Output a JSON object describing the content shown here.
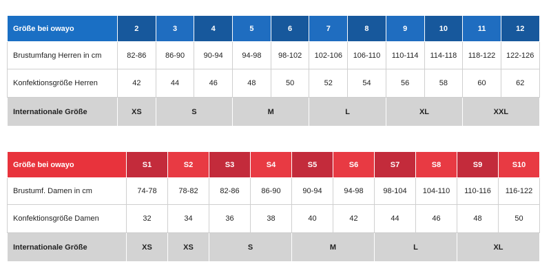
{
  "tables": [
    {
      "header": [
        "Größe bei owayo",
        2,
        3,
        4,
        5,
        6,
        7,
        8,
        9,
        10,
        11,
        12
      ],
      "rows": [
        [
          "Brustumfang Herren in cm",
          "82-86",
          "86-90",
          "90-94",
          "94-98",
          "98-102",
          "102-106",
          "106-110",
          "110-114",
          "114-118",
          "118-122",
          "122-126"
        ],
        [
          "Konfektionsgröße Herren",
          42,
          44,
          46,
          48,
          50,
          52,
          54,
          56,
          58,
          60,
          62
        ],
        [
          "Internationale Größe",
          "XS",
          "S",
          "M",
          "L",
          "XL",
          "XXL"
        ]
      ]
    },
    {
      "header": [
        "Größe bei owayo",
        "S1",
        "S2",
        "S3",
        "S4",
        "S5",
        "S6",
        "S7",
        "S8",
        "S9",
        "S10"
      ],
      "rows": [
        [
          "Brustumf. Damen in cm",
          "74-78",
          "78-82",
          "82-86",
          "86-90",
          "90-94",
          "94-98",
          "98-104",
          "104-110",
          "110-116",
          "116-122"
        ],
        [
          "Konfektionsgröße Damen",
          32,
          34,
          36,
          38,
          40,
          42,
          44,
          46,
          48,
          50
        ],
        [
          "Internationale Größe",
          "XS",
          "XS",
          "S",
          "M",
          "L",
          "XL"
        ]
      ]
    }
  ]
}
